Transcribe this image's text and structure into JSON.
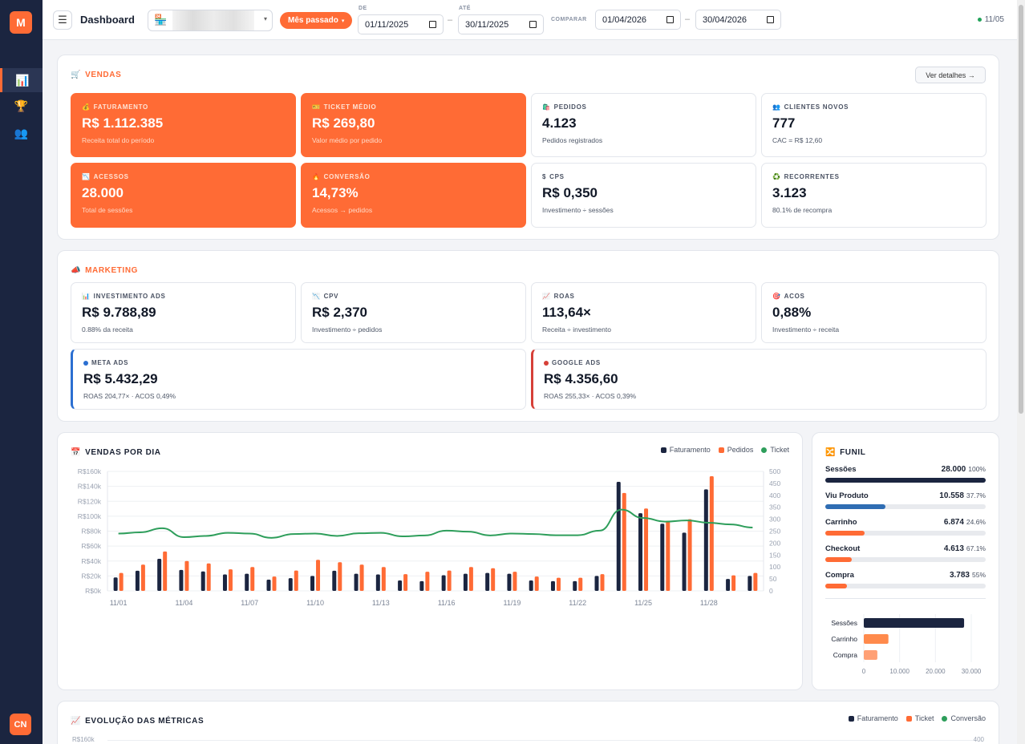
{
  "sidebar": {
    "logo": "M",
    "items": [
      {
        "icon": "📊",
        "name": "dashboard"
      },
      {
        "icon": "🏆",
        "name": "trophy"
      },
      {
        "icon": "👥",
        "name": "users"
      }
    ],
    "avatar": "CN"
  },
  "topbar": {
    "title": "Dashboard",
    "store_icon": "🏪",
    "period": "Mês passado",
    "de_label": "DE",
    "ate_label": "ATÉ",
    "from": "01/11/2025",
    "to": "30/11/2025",
    "compare_label": "COMPARAR",
    "compare_from": "01/04/2026",
    "compare_to": "30/04/2026",
    "status": "11/05"
  },
  "vendas": {
    "title": "VENDAS",
    "icon": "🛒",
    "details_btn": "Ver detalhes →",
    "cards": [
      {
        "icon": "💰",
        "label": "FATURAMENTO",
        "value": "R$ 1.112.385",
        "sub": "Receita total do período"
      },
      {
        "icon": "🎫",
        "label": "TICKET MÉDIO",
        "value": "R$ 269,80",
        "sub": "Valor médio por pedido"
      },
      {
        "icon": "🛍️",
        "label": "PEDIDOS",
        "value": "4.123",
        "sub": "Pedidos registrados"
      },
      {
        "icon": "👥",
        "label": "CLIENTES NOVOS",
        "value": "777",
        "sub": "CAC = R$ 12,60"
      },
      {
        "icon": "📉",
        "label": "ACESSOS",
        "value": "28.000",
        "sub": "Total de sessões"
      },
      {
        "icon": "🔥",
        "label": "CONVERSÃO",
        "value": "14,73%",
        "sub": "Acessos → pedidos"
      },
      {
        "icon": "$",
        "label": "CPS",
        "value": "R$ 0,350",
        "sub": "Investimento ÷ sessões"
      },
      {
        "icon": "♻️",
        "label": "RECORRENTES",
        "value": "3.123",
        "sub": "80.1% de recompra"
      }
    ]
  },
  "marketing": {
    "title": "MARKETING",
    "icon": "📣",
    "cards": [
      {
        "icon": "📊",
        "label": "INVESTIMENTO ADS",
        "value": "R$ 9.788,89",
        "sub": "0.88% da receita"
      },
      {
        "icon": "📉",
        "label": "CPV",
        "value": "R$ 2,370",
        "sub": "Investimento ÷ pedidos"
      },
      {
        "icon": "📈",
        "label": "ROAS",
        "value": "113,64×",
        "sub": "Receita ÷ investimento"
      },
      {
        "icon": "🎯",
        "label": "ACOS",
        "value": "0,88%",
        "sub": "Investimento ÷ receita"
      }
    ],
    "meta": {
      "label": "META ADS",
      "value": "R$ 5.432,29",
      "sub": "ROAS 204,77× · ACOS 0,49%",
      "color": "#2b6fd1"
    },
    "google": {
      "label": "GOOGLE ADS",
      "value": "R$ 4.356,60",
      "sub": "ROAS 255,33× · ACOS 0,39%",
      "color": "#d64038"
    }
  },
  "vendas_dia": {
    "title": "VENDAS POR DIA",
    "icon": "📅",
    "legend": [
      "Faturamento",
      "Pedidos",
      "Ticket"
    ]
  },
  "funil": {
    "title": "FUNIL",
    "icon": "🔀",
    "steps": [
      {
        "name": "Sessões",
        "value": "28.000",
        "pct": "100%",
        "ratio": 1.0,
        "color": "#1b2540"
      },
      {
        "name": "Viu Produto",
        "value": "10.558",
        "pct": "37.7%",
        "ratio": 0.377,
        "color": "#2f6db3"
      },
      {
        "name": "Carrinho",
        "value": "6.874",
        "pct": "24.6%",
        "ratio": 0.246,
        "color": "#ff6b35"
      },
      {
        "name": "Checkout",
        "value": "4.613",
        "pct": "67.1%",
        "ratio": 0.165,
        "color": "#ff6b35"
      },
      {
        "name": "Compra",
        "value": "3.783",
        "pct": "55%",
        "ratio": 0.135,
        "color": "#ff6b35"
      }
    ]
  },
  "evolucao": {
    "title": "EVOLUÇÃO DAS MÉTRICAS",
    "icon": "📈",
    "legend": [
      "Faturamento",
      "Ticket",
      "Conversão"
    ],
    "y_top_left": "R$160k",
    "y_top_right": "400"
  },
  "colors": {
    "navy": "#1b2540",
    "orange": "#ff6b35",
    "green": "#2e9e5b"
  },
  "chart_data": [
    {
      "type": "bar",
      "title": "VENDAS POR DIA",
      "categories": [
        "11/01",
        "11/02",
        "11/03",
        "11/04",
        "11/05",
        "11/06",
        "11/07",
        "11/08",
        "11/09",
        "11/10",
        "11/11",
        "11/12",
        "11/13",
        "11/14",
        "11/15",
        "11/16",
        "11/17",
        "11/18",
        "11/19",
        "11/20",
        "11/21",
        "11/22",
        "11/23",
        "11/24",
        "11/25",
        "11/26",
        "11/27",
        "11/28",
        "11/29",
        "11/30"
      ],
      "x_ticks": [
        "11/01",
        "11/04",
        "11/07",
        "11/10",
        "11/13",
        "11/16",
        "11/19",
        "11/22",
        "11/25",
        "11/28"
      ],
      "series": [
        {
          "name": "Faturamento",
          "axis": "left",
          "values": [
            18000,
            27000,
            43000,
            28000,
            26000,
            22000,
            23000,
            15000,
            17000,
            20000,
            27000,
            23000,
            22000,
            14000,
            13000,
            21000,
            23000,
            24000,
            23000,
            14000,
            13000,
            13000,
            20000,
            146000,
            104000,
            90000,
            78000,
            136000,
            16000,
            20000
          ]
        },
        {
          "name": "Pedidos",
          "axis": "right",
          "values": [
            75,
            110,
            165,
            125,
            115,
            90,
            100,
            60,
            85,
            130,
            120,
            110,
            100,
            70,
            80,
            85,
            100,
            95,
            80,
            60,
            55,
            55,
            70,
            410,
            345,
            290,
            300,
            480,
            65,
            75
          ]
        },
        {
          "name": "Ticket",
          "axis": "right",
          "type": "line",
          "values": [
            240,
            245,
            262,
            225,
            230,
            243,
            240,
            222,
            238,
            240,
            230,
            241,
            243,
            228,
            232,
            252,
            248,
            232,
            240,
            238,
            233,
            233,
            252,
            340,
            305,
            290,
            295,
            285,
            278,
            265
          ]
        }
      ],
      "y_left": {
        "min": 0,
        "max": 160000,
        "ticks": [
          "R$0k",
          "R$20k",
          "R$40k",
          "R$60k",
          "R$80k",
          "R$100k",
          "R$120k",
          "R$140k",
          "R$160k"
        ]
      },
      "y_right": {
        "min": 0,
        "max": 500,
        "ticks": [
          "0",
          "50",
          "100",
          "150",
          "200",
          "250",
          "300",
          "350",
          "400",
          "450",
          "500"
        ]
      },
      "legend": "top-right",
      "grid": true
    },
    {
      "type": "bar",
      "orientation": "horizontal",
      "title": "",
      "categories": [
        "Sessões",
        "Carrinho",
        "Compra"
      ],
      "values": [
        28000,
        6874,
        3783
      ],
      "x_ticks": [
        "0",
        "10.000",
        "20.000",
        "30.000"
      ],
      "xlim": [
        0,
        30000
      ]
    }
  ]
}
